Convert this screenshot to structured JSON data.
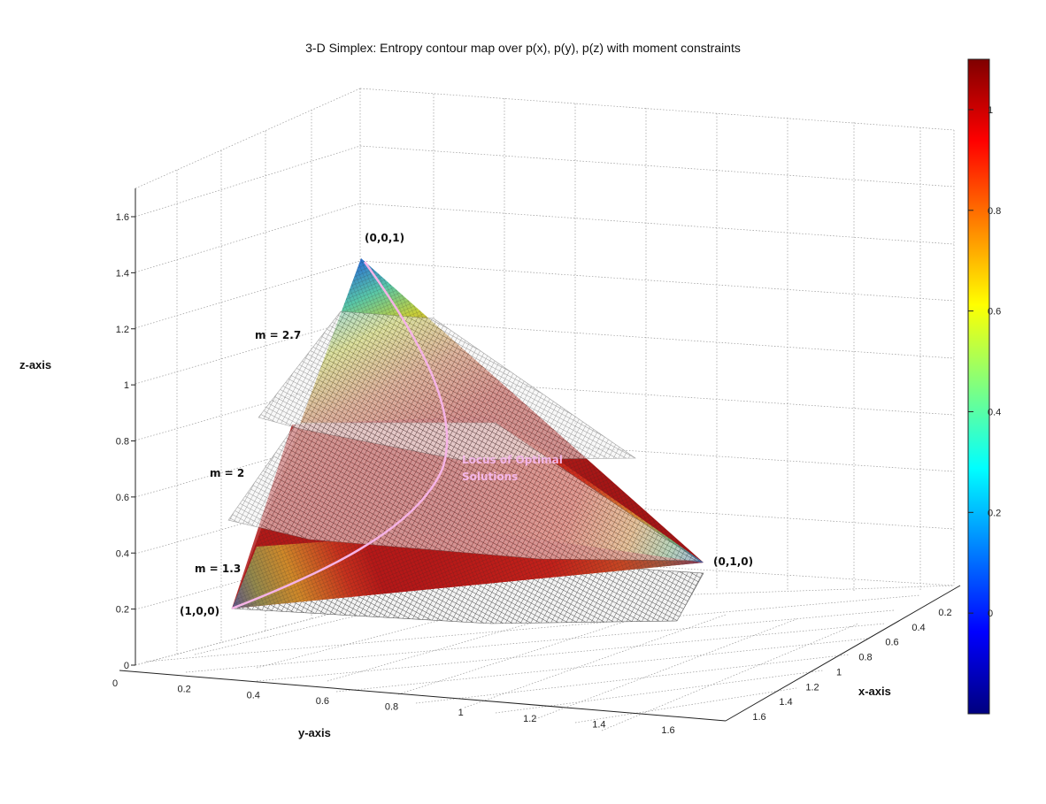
{
  "chart_data": {
    "type": "surface",
    "title": "3-D Simplex: Entropy contour map over p(x), p(y), p(z) with moment constraints",
    "xlabel": "x-axis",
    "ylabel": "y-axis",
    "zlabel": "z-axis",
    "xlim": [
      0,
      1.7
    ],
    "ylim": [
      0,
      1.7
    ],
    "zlim": [
      0,
      1.7
    ],
    "x_ticks": [
      "0.2",
      "0.4",
      "0.6",
      "0.8",
      "1",
      "1.2",
      "1.4",
      "1.6"
    ],
    "y_ticks": [
      "0",
      "0.2",
      "0.4",
      "0.6",
      "0.8",
      "1",
      "1.2",
      "1.4",
      "1.6"
    ],
    "z_ticks": [
      "0",
      "0.2",
      "0.4",
      "0.6",
      "0.8",
      "1",
      "1.2",
      "1.4",
      "1.6"
    ],
    "grid": true,
    "colorbar": {
      "colormap": "jet",
      "ticks": [
        "0",
        "0.2",
        "0.4",
        "0.6",
        "0.8",
        "1"
      ],
      "range": [
        -0.2,
        1.1
      ]
    },
    "vertices": [
      {
        "label": "(0,0,1)",
        "p": [
          0,
          0,
          1
        ]
      },
      {
        "label": "(0,1,0)",
        "p": [
          0,
          1,
          0
        ]
      },
      {
        "label": "(1,0,0)",
        "p": [
          1,
          0,
          0
        ]
      }
    ],
    "constraint_planes": [
      {
        "label": "m = 2.7",
        "m": 2.7
      },
      {
        "label": "m = 2",
        "m": 2
      },
      {
        "label": "m = 1.3",
        "m": 1.3
      }
    ],
    "locus_label": [
      "Locus of Optimal",
      "Solutions"
    ],
    "colors": {
      "locus": "#f5b3e6",
      "plane_mesh": "#5a5a5a",
      "grid": "#9a9a9a"
    }
  }
}
